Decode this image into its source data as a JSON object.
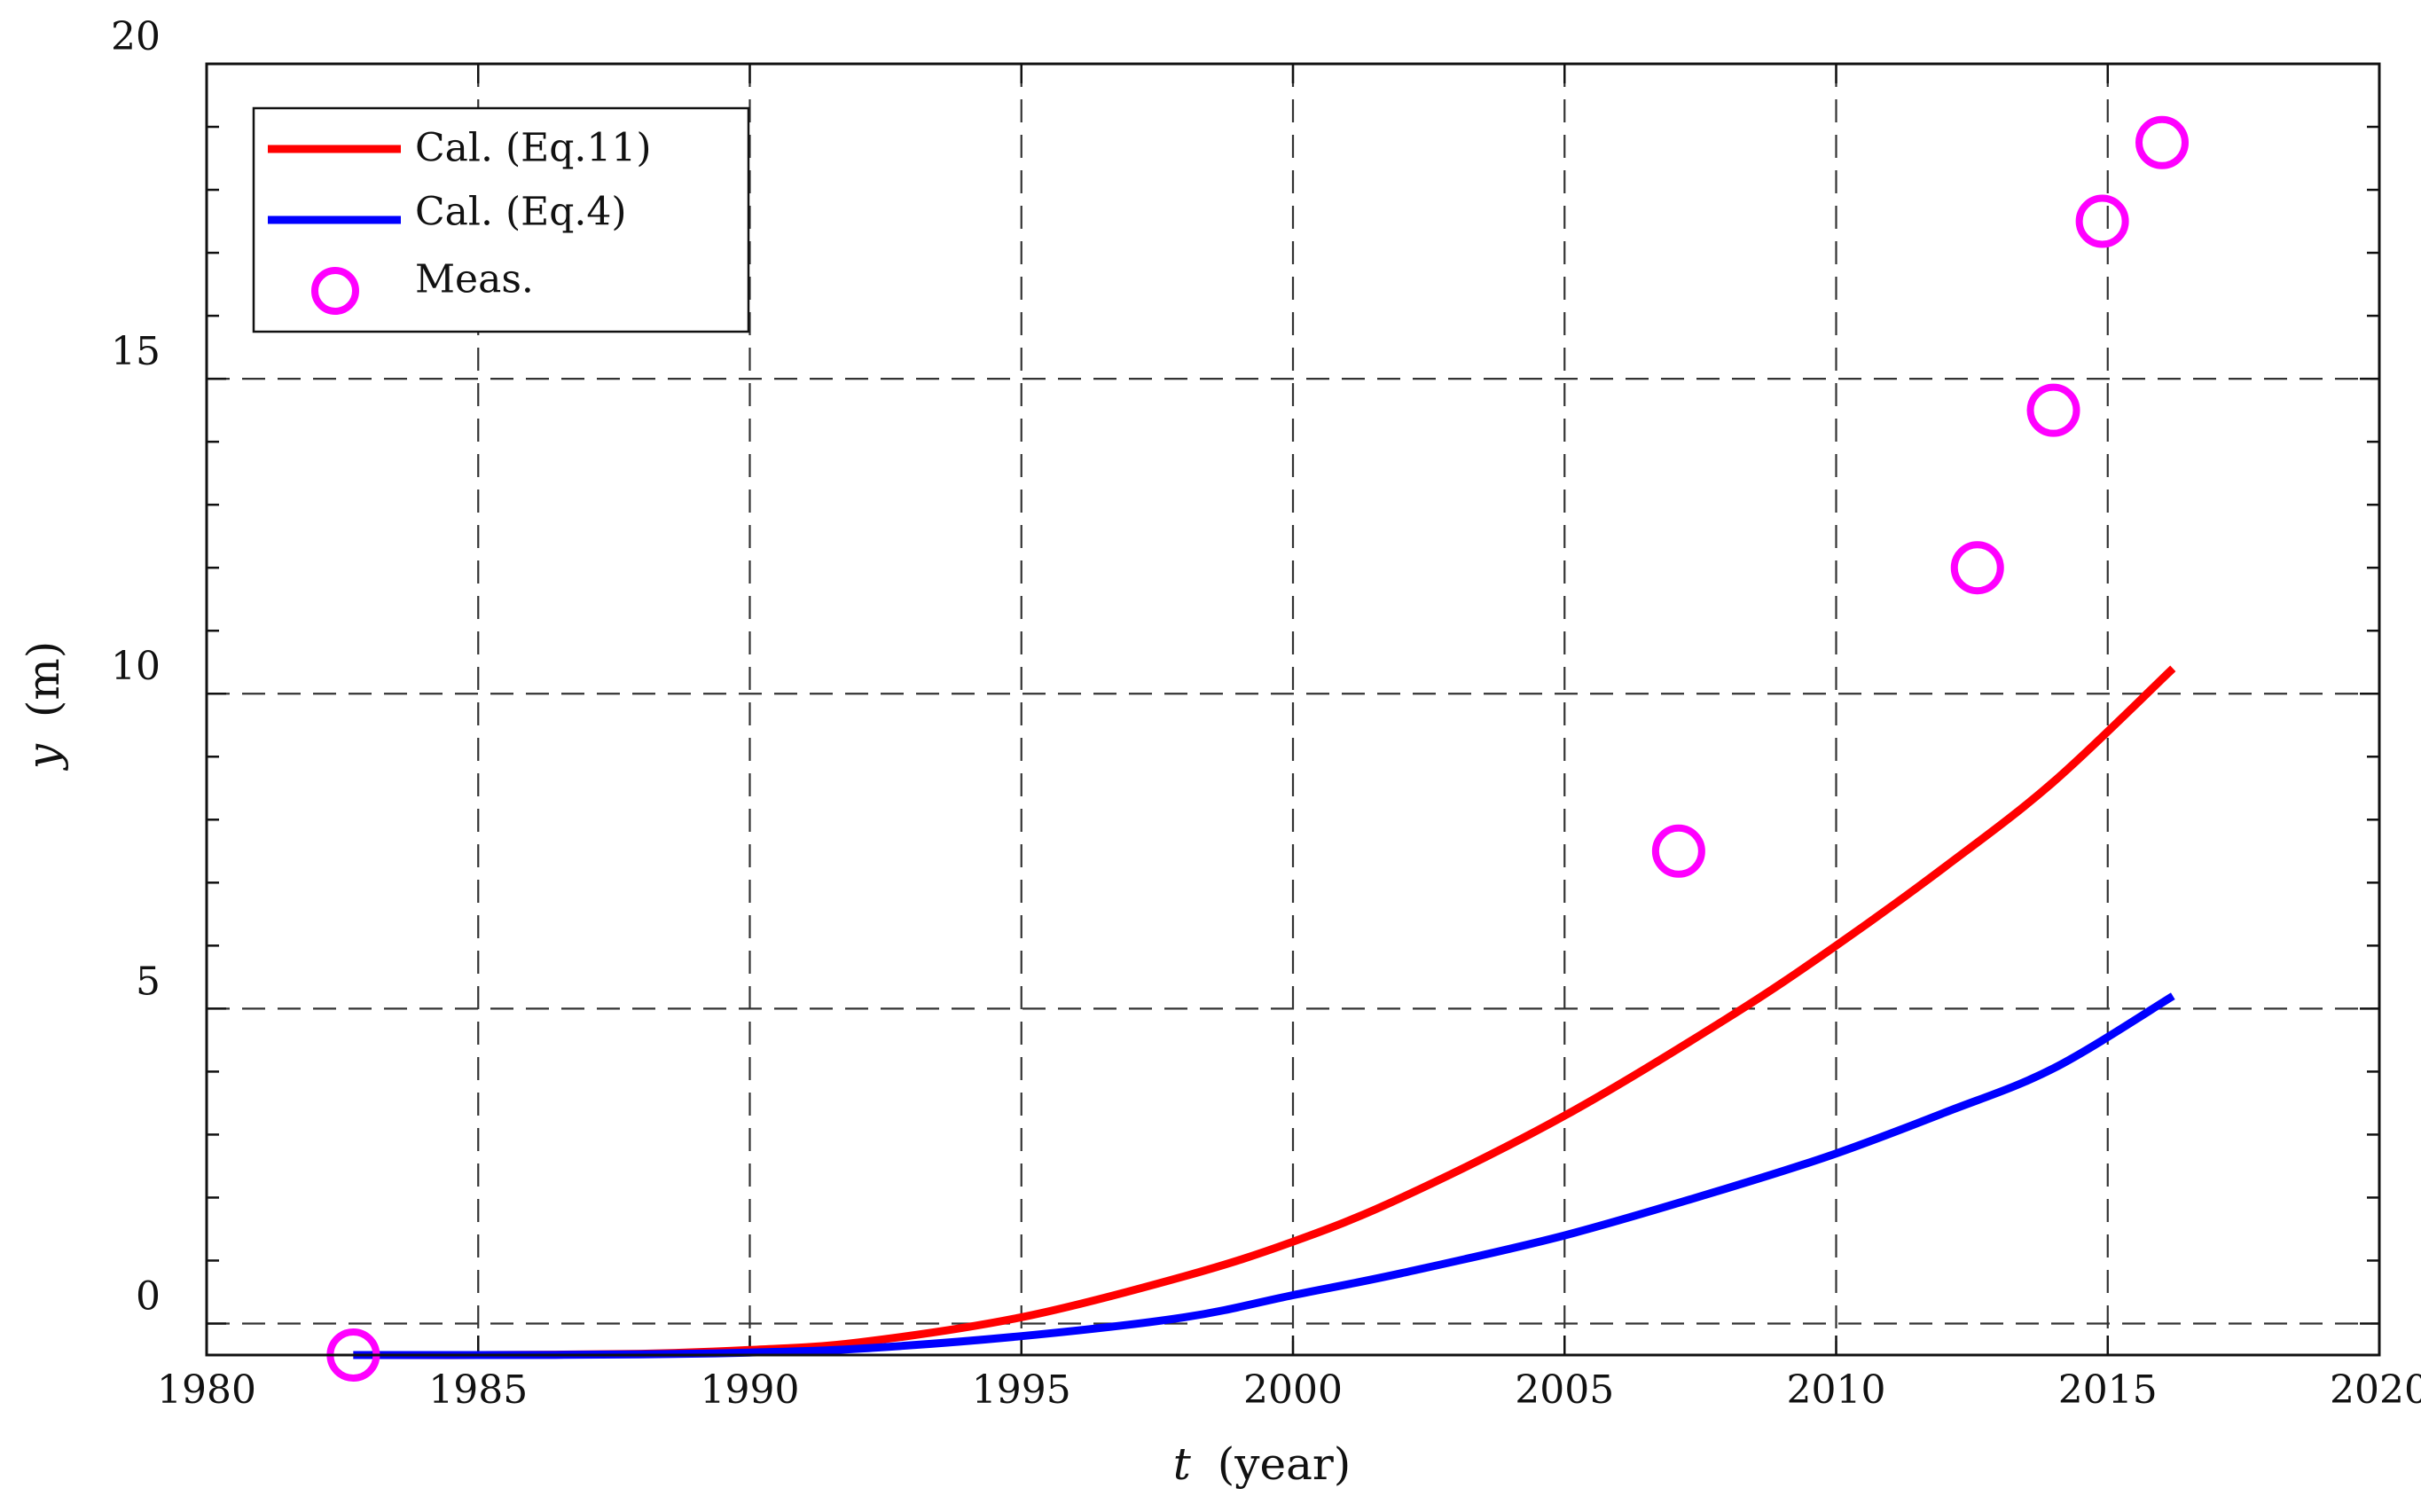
{
  "chart_data": {
    "type": "line",
    "title": "",
    "xlabel_var": "t",
    "xlabel_unit": "(year)",
    "ylabel_var": "y",
    "ylabel_unit": "(m)",
    "xlim": [
      1980,
      2020
    ],
    "ylim": [
      -0.5,
      20
    ],
    "xticks": [
      1980,
      1985,
      1990,
      1995,
      2000,
      2005,
      2010,
      2015,
      2020
    ],
    "xtick_labels": [
      "1980",
      "1985",
      "1990",
      "1995",
      "2000",
      "2005",
      "2010",
      "2015",
      "2020"
    ],
    "yticks": [
      0,
      5,
      10,
      15,
      20
    ],
    "ytick_labels": [
      "0",
      "5",
      "10",
      "15",
      "20"
    ],
    "y_minor_step": 1,
    "grid": true,
    "legend_position": "top-left",
    "series": [
      {
        "name": "Cal. (Eq.11)",
        "kind": "line",
        "color": "#ff0000",
        "x": [
          1982.7,
          1985,
          1988,
          1990,
          1992,
          1995,
          1998,
          2000,
          2002,
          2005,
          2008,
          2010,
          2012,
          2014,
          2016.2
        ],
        "y": [
          -0.5,
          -0.5,
          -0.48,
          -0.42,
          -0.3,
          0.1,
          0.75,
          1.3,
          2.0,
          3.3,
          4.85,
          6.0,
          7.25,
          8.6,
          10.4
        ]
      },
      {
        "name": "Cal. (Eq.4)",
        "kind": "line",
        "color": "#0000ff",
        "x": [
          1982.7,
          1985,
          1988,
          1990,
          1992,
          1995,
          1998,
          2000,
          2002,
          2005,
          2008,
          2010,
          2012,
          2014,
          2016.2
        ],
        "y": [
          -0.5,
          -0.5,
          -0.49,
          -0.46,
          -0.4,
          -0.2,
          0.1,
          0.45,
          0.8,
          1.4,
          2.15,
          2.7,
          3.35,
          4.05,
          5.2
        ]
      },
      {
        "name": "Meas.",
        "kind": "scatter",
        "color": "#ff00ff",
        "x": [
          1982.7,
          2007.1,
          2012.6,
          2014.0,
          2014.9,
          2016.0
        ],
        "y": [
          -0.5,
          7.5,
          12.0,
          14.5,
          17.5,
          18.75
        ]
      }
    ]
  }
}
